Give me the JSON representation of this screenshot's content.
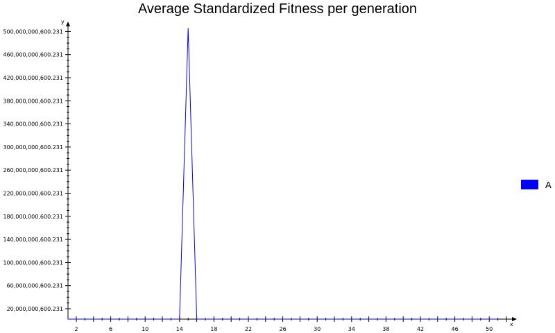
{
  "chart_data": {
    "type": "line",
    "title": "Average Standardized Fitness per generation",
    "xlabel": "x",
    "ylabel": "y",
    "x": [
      1,
      2,
      3,
      4,
      5,
      6,
      7,
      8,
      9,
      10,
      11,
      12,
      13,
      14,
      15,
      16,
      17,
      18,
      19,
      20,
      21,
      22,
      23,
      24,
      25,
      26,
      27,
      28,
      29,
      30,
      31,
      32,
      33,
      34,
      35,
      36,
      37,
      38,
      39,
      40,
      41,
      42,
      43,
      44,
      45,
      46,
      47,
      48,
      49,
      50,
      51
    ],
    "series": [
      {
        "name": "A",
        "color": "#0000ff",
        "values": [
          0,
          0,
          0,
          0,
          0,
          0,
          0,
          0,
          0,
          0,
          0,
          0,
          0,
          0,
          504000000000,
          0,
          0,
          0,
          0,
          0,
          0,
          0,
          0,
          0,
          0,
          0,
          0,
          0,
          0,
          0,
          0,
          0,
          0,
          0,
          0,
          0,
          0,
          0,
          0,
          0,
          0,
          0,
          0,
          0,
          0,
          0,
          0,
          0,
          0,
          0,
          0
        ]
      }
    ],
    "xlim": [
      1,
      52
    ],
    "ylim": [
      0,
      508000000000
    ],
    "x_ticks": [
      "2",
      "6",
      "10",
      "14",
      "18",
      "22",
      "26",
      "30",
      "34",
      "38",
      "42",
      "46",
      "50"
    ],
    "y_ticks": [
      "20,000,000,600.231",
      "60,000,000,600.231",
      "100,000,000,600.231",
      "140,000,000,600.231",
      "180,000,000,600.231",
      "220,000,000,600.231",
      "260,000,000,600.231",
      "300,000,000,600.231",
      "340,000,000,600.231",
      "380,000,000,600.231",
      "420,000,000,600.231",
      "460,000,000,600.231",
      "500,000,000,600.231"
    ],
    "legend": {
      "position": "right",
      "label": "A",
      "color": "#0000ff"
    },
    "grid": false
  }
}
